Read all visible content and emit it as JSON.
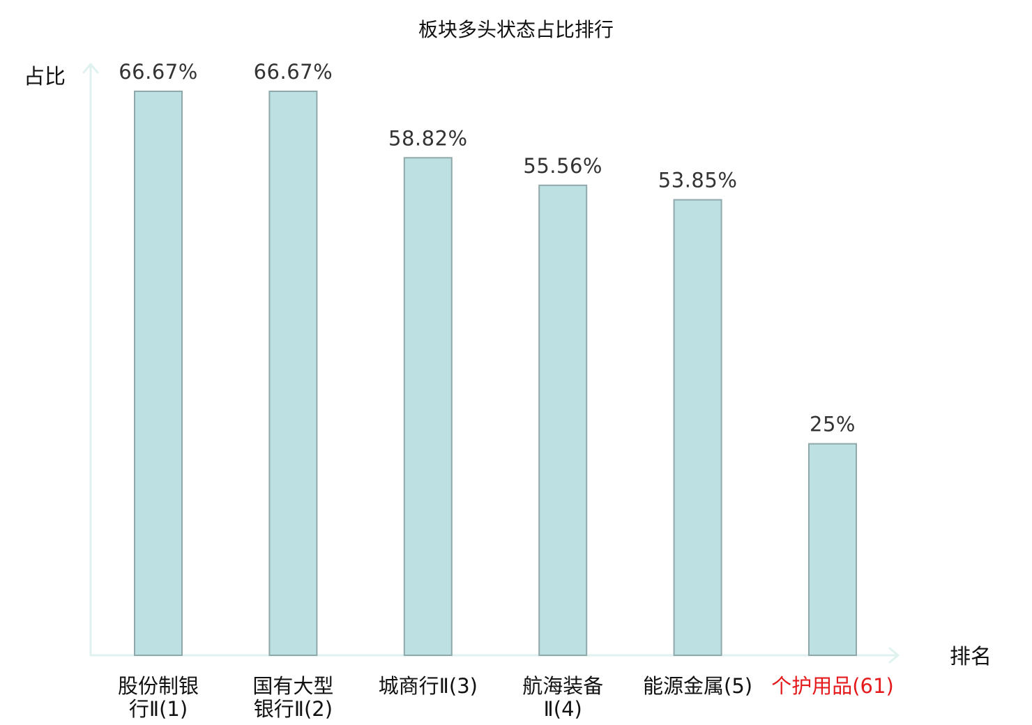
{
  "chart_data": {
    "type": "bar",
    "title": "板块多头状态占比排行",
    "ylabel": "占比",
    "xlabel": "排名",
    "ylim": [
      0,
      66.67
    ],
    "grid": false,
    "legend": "none",
    "categories": [
      [
        "股份制银",
        "行Ⅱ(1)"
      ],
      [
        "国有大型",
        "银行Ⅱ(2)"
      ],
      [
        "城商行Ⅱ(3)"
      ],
      [
        "航海装备",
        "Ⅱ(4)"
      ],
      [
        "能源金属(5)"
      ],
      [
        "个护用品(61)"
      ]
    ],
    "values": [
      66.67,
      66.67,
      58.82,
      55.56,
      53.85,
      25
    ],
    "value_labels": [
      "66.67%",
      "66.67%",
      "58.82%",
      "55.56%",
      "53.85%",
      "25%"
    ],
    "highlight_index": 5,
    "colors": {
      "bar_fill": "#bde0e3",
      "bar_stroke": "#8fa9aa",
      "axis": "#dff2ef",
      "label": "#111111",
      "value_label": "#333333",
      "highlight": "#e41a1c"
    }
  }
}
